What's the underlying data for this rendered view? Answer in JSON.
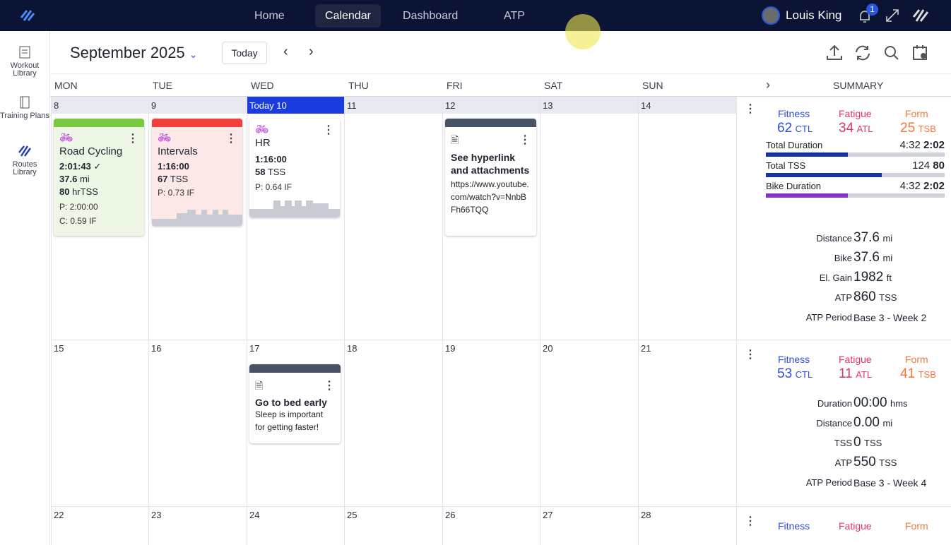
{
  "nav": {
    "tabs": [
      "Home",
      "Calendar",
      "Dashboard",
      "ATP"
    ],
    "active": "Calendar",
    "user": "Louis King",
    "notifications": "1"
  },
  "sidebar": [
    {
      "label": "Workout Library"
    },
    {
      "label": "Training Plans"
    },
    {
      "label": "Routes Library"
    }
  ],
  "toolbar": {
    "month": "September 2025",
    "today": "Today"
  },
  "columns": [
    "MON",
    "TUE",
    "WED",
    "THU",
    "FRI",
    "SAT",
    "SUN"
  ],
  "summary_label": "SUMMARY",
  "weeks": [
    {
      "days": [
        "8",
        "9",
        "Today 10",
        "11",
        "12",
        "13",
        "14"
      ]
    },
    {
      "days": [
        "15",
        "16",
        "17",
        "18",
        "19",
        "20",
        "21"
      ]
    },
    {
      "days": [
        "22",
        "23",
        "24",
        "25",
        "26",
        "27",
        "28"
      ]
    }
  ],
  "cards": {
    "road": {
      "title": "Road Cycling",
      "duration": "2:01:43",
      "check": "✓",
      "dist": "37.6",
      "dist_unit": "mi",
      "tss": "80",
      "tss_unit": "hrTSS",
      "planned": "P: 2:00:00",
      "compliance": "C: 0.59 IF",
      "color": "#7ac943"
    },
    "intervals": {
      "title": "Intervals",
      "duration": "1:16:00",
      "tss": "67",
      "tss_unit": "TSS",
      "planned": "P: 0.73 IF",
      "color": "#f0403c"
    },
    "hr": {
      "title": "HR",
      "duration": "1:16:00",
      "tss": "58",
      "tss_unit": "TSS",
      "planned": "P: 0.64 IF"
    },
    "note1": {
      "title": "See hyperlink and attachments",
      "body": "https://www.youtube.com/watch?v=NnbBFh66TQQ"
    },
    "note2": {
      "title": "Go to bed early",
      "body": "Sleep is important for getting faster!"
    }
  },
  "summary": [
    {
      "fitness": "62",
      "fatigue": "34",
      "form": "25",
      "rows": [
        {
          "label": "Total Duration",
          "planned": "4:32",
          "done": "2:02",
          "pct": 46,
          "color": "#1432a0"
        },
        {
          "label": "Total TSS",
          "planned": "124",
          "done": "80",
          "pct": 65,
          "color": "#1432a0"
        },
        {
          "label": "Bike Duration",
          "planned": "4:32",
          "done": "2:02",
          "pct": 46,
          "color": "#8b2fc9"
        }
      ],
      "stats": [
        {
          "k": "Distance",
          "v": "37.6",
          "u": "mi"
        },
        {
          "k": "Bike",
          "v": "37.6",
          "u": "mi"
        },
        {
          "k": "El. Gain",
          "v": "1982",
          "u": "ft"
        },
        {
          "k": "ATP",
          "v": "860",
          "u": "TSS"
        },
        {
          "k": "ATP Period",
          "v": "Base 3 - Week 2",
          "u": ""
        }
      ]
    },
    {
      "fitness": "53",
      "fatigue": "11",
      "form": "41",
      "stats": [
        {
          "k": "Duration",
          "v": "00:00",
          "u": "hms"
        },
        {
          "k": "Distance",
          "v": "0.00",
          "u": "mi"
        },
        {
          "k": "TSS",
          "v": "0",
          "u": "TSS"
        },
        {
          "k": "ATP",
          "v": "550",
          "u": "TSS"
        },
        {
          "k": "ATP Period",
          "v": "Base 3 - Week 4",
          "u": ""
        }
      ]
    }
  ],
  "labels": {
    "fitness": "Fitness",
    "fatigue": "Fatigue",
    "form": "Form",
    "ctl": "CTL",
    "atl": "ATL",
    "tsb": "TSB"
  }
}
